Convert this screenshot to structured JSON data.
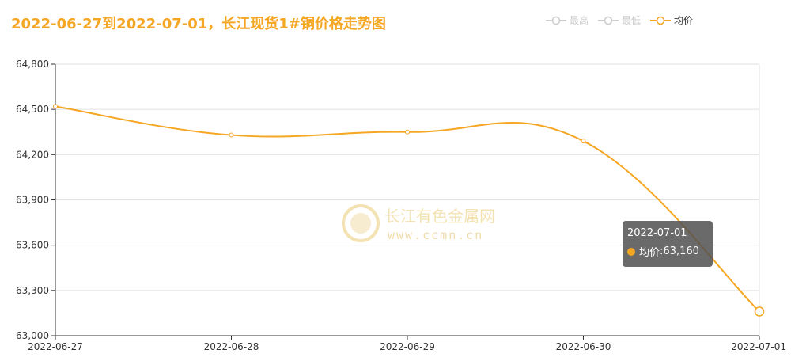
{
  "title": "2022-06-27到2022-07-01，长江现货1#铜价格走势图",
  "legend": [
    {
      "label": "最高",
      "active": false
    },
    {
      "label": "最低",
      "active": false
    },
    {
      "label": "均价",
      "active": true
    }
  ],
  "watermark": {
    "name": "长江有色金属网",
    "url": "www.ccmn.cn"
  },
  "tooltip": {
    "date": "2022-07-01",
    "series": "均价",
    "value": "63,160"
  },
  "colors": {
    "accent": "#f5a623",
    "grid": "#e0e0e0",
    "inactive": "#cccccc"
  },
  "chart_data": {
    "type": "line",
    "title": "2022-06-27到2022-07-01，长江现货1#铜价格走势图",
    "categories": [
      "2022-06-27",
      "2022-06-28",
      "2022-06-29",
      "2022-06-30",
      "2022-07-01"
    ],
    "series": [
      {
        "name": "均价",
        "values": [
          64520,
          64330,
          64350,
          64290,
          63160
        ]
      }
    ],
    "ylim": [
      63000,
      64800
    ],
    "yticks": [
      63000,
      63300,
      63600,
      63900,
      64200,
      64500,
      64800
    ],
    "ytick_labels": [
      "63,000",
      "63,300",
      "63,600",
      "63,900",
      "64,200",
      "64,500",
      "64,800"
    ],
    "grid": true,
    "legend_position": "top-right",
    "smooth": true
  }
}
